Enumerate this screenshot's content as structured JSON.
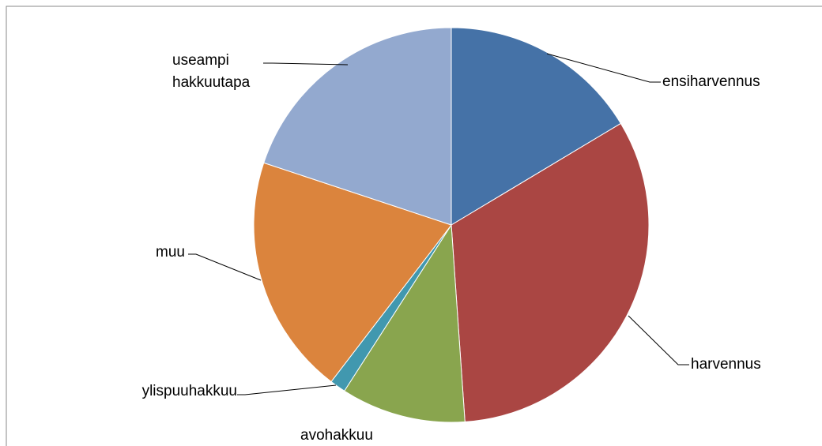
{
  "chart_data": {
    "type": "pie",
    "categories": [
      "ensiharvennus",
      "harvennus",
      "avohakkuu",
      "ylispuuhakkuu",
      "muu",
      "useampi hakkuutapa"
    ],
    "values": [
      16.4,
      32.5,
      10.2,
      1.3,
      19.7,
      19.9
    ],
    "colors": [
      "#4572a7",
      "#aa4643",
      "#89a54e",
      "#4198af",
      "#db843d",
      "#93a9cf"
    ]
  }
}
